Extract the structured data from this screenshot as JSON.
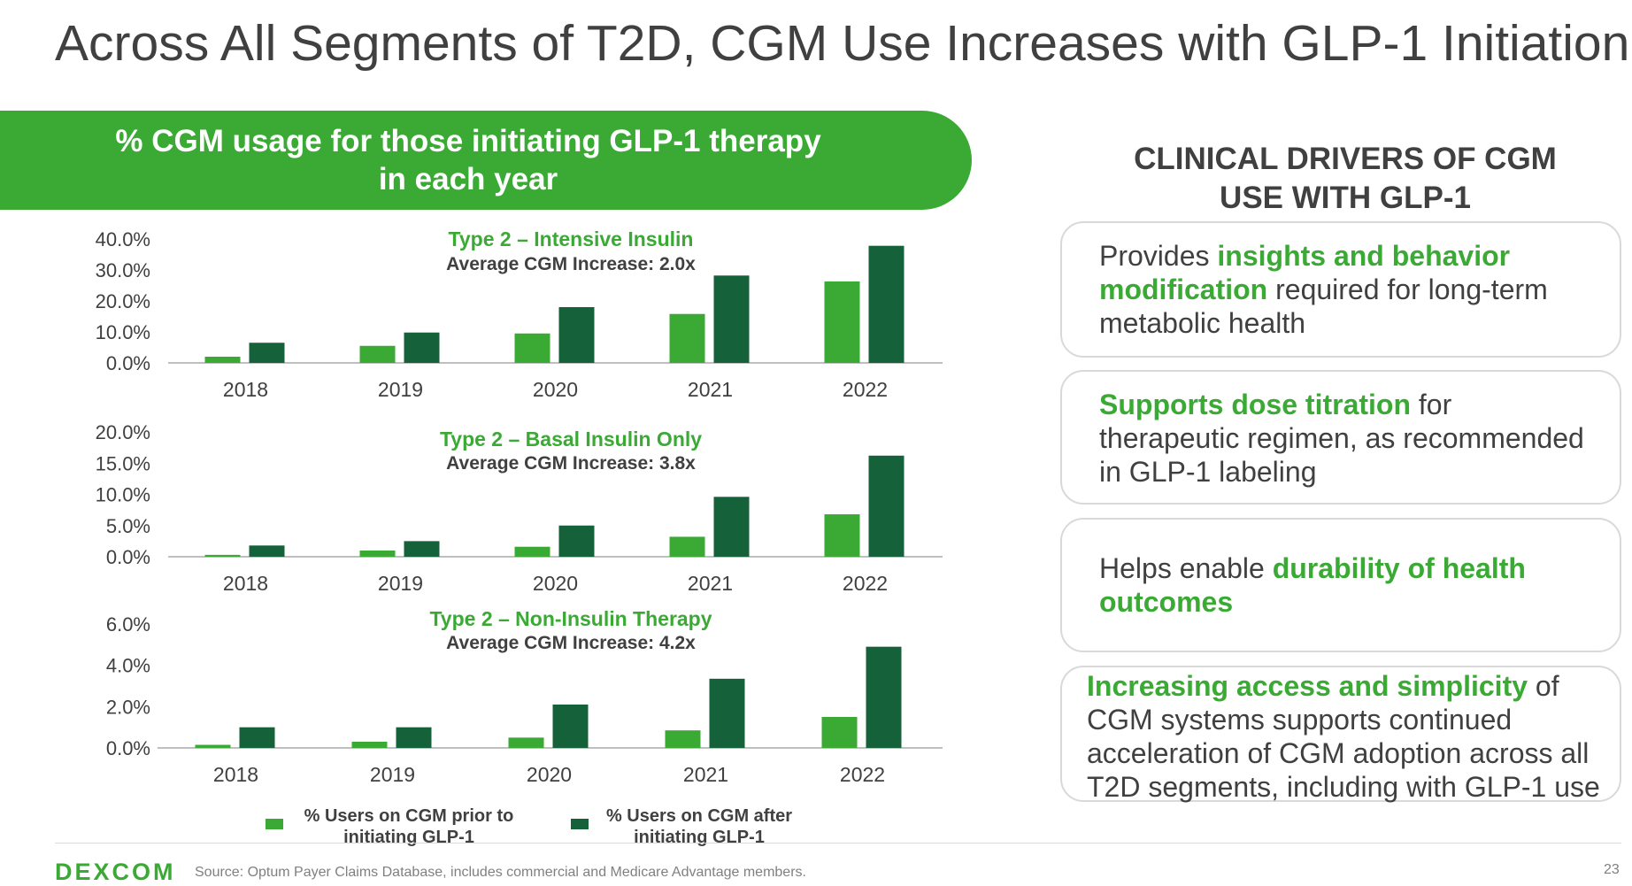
{
  "title": "Across All Segments of T2D, CGM Use Increases with GLP-1 Initiation",
  "banner": {
    "line1": "% CGM usage for those initiating GLP-1 therapy",
    "line2": "in each year"
  },
  "colors": {
    "prior": "#3aaa35",
    "after": "#14613a",
    "accent": "#3aaa35"
  },
  "legend": {
    "prior_line1": "% Users on CGM prior to",
    "prior_line2": "initiating GLP-1",
    "after_line1": "% Users on CGM after",
    "after_line2": "initiating GLP-1"
  },
  "chart_data": [
    {
      "type": "bar",
      "title": "Type 2 – Intensive Insulin",
      "subtitle": "Average CGM Increase: 2.0x",
      "categories": [
        "2018",
        "2019",
        "2020",
        "2021",
        "2022"
      ],
      "series": [
        {
          "name": "% Users on CGM prior to initiating GLP-1",
          "values": [
            2.0,
            5.5,
            9.5,
            15.8,
            26.3
          ]
        },
        {
          "name": "% Users on CGM after initiating GLP-1",
          "values": [
            6.5,
            9.8,
            18.0,
            28.2,
            37.8
          ]
        }
      ],
      "yticks": [
        "0.0%",
        "10.0%",
        "20.0%",
        "30.0%",
        "40.0%"
      ],
      "ylim": [
        0,
        40
      ]
    },
    {
      "type": "bar",
      "title": "Type 2 – Basal Insulin Only",
      "subtitle": "Average CGM Increase: 3.8x",
      "categories": [
        "2018",
        "2019",
        "2020",
        "2021",
        "2022"
      ],
      "series": [
        {
          "name": "% Users on CGM prior to initiating GLP-1",
          "values": [
            0.3,
            1.0,
            1.6,
            3.2,
            6.8
          ]
        },
        {
          "name": "% Users on CGM after initiating GLP-1",
          "values": [
            1.8,
            2.5,
            5.0,
            9.6,
            16.2
          ]
        }
      ],
      "yticks": [
        "0.0%",
        "5.0%",
        "10.0%",
        "15.0%",
        "20.0%"
      ],
      "ylim": [
        0,
        20
      ]
    },
    {
      "type": "bar",
      "title": "Type 2 – Non-Insulin Therapy",
      "subtitle": "Average CGM Increase: 4.2x",
      "categories": [
        "2018",
        "2019",
        "2020",
        "2021",
        "2022"
      ],
      "series": [
        {
          "name": "% Users on CGM prior to initiating GLP-1",
          "values": [
            0.15,
            0.3,
            0.5,
            0.85,
            1.5
          ]
        },
        {
          "name": "% Users on CGM after initiating GLP-1",
          "values": [
            1.0,
            1.0,
            2.1,
            3.35,
            4.9
          ]
        }
      ],
      "yticks": [
        "0.0%",
        "2.0%",
        "4.0%",
        "6.0%"
      ],
      "ylim": [
        0,
        6
      ]
    }
  ],
  "drivers": {
    "title_line1": "CLINICAL DRIVERS OF CGM",
    "title_line2": "USE WITH GLP-1",
    "cards": [
      {
        "pre": "Provides ",
        "highlight": "insights and behavior modification",
        "post": " required for long-term metabolic health"
      },
      {
        "pre": "",
        "highlight": "Supports dose titration",
        "post": " for therapeutic regimen, as recommended in GLP-1 labeling"
      },
      {
        "pre": "Helps enable ",
        "highlight": "durability of health outcomes",
        "post": ""
      },
      {
        "pre": "",
        "highlight": "Increasing access and simplicity",
        "post": " of CGM systems supports continued acceleration of CGM adoption across all T2D segments, including with GLP-1 use"
      }
    ]
  },
  "footer": {
    "logo": "DEXCOM",
    "source": "Source: Optum Payer Claims Database, includes commercial and Medicare Advantage members.",
    "page": "23"
  }
}
